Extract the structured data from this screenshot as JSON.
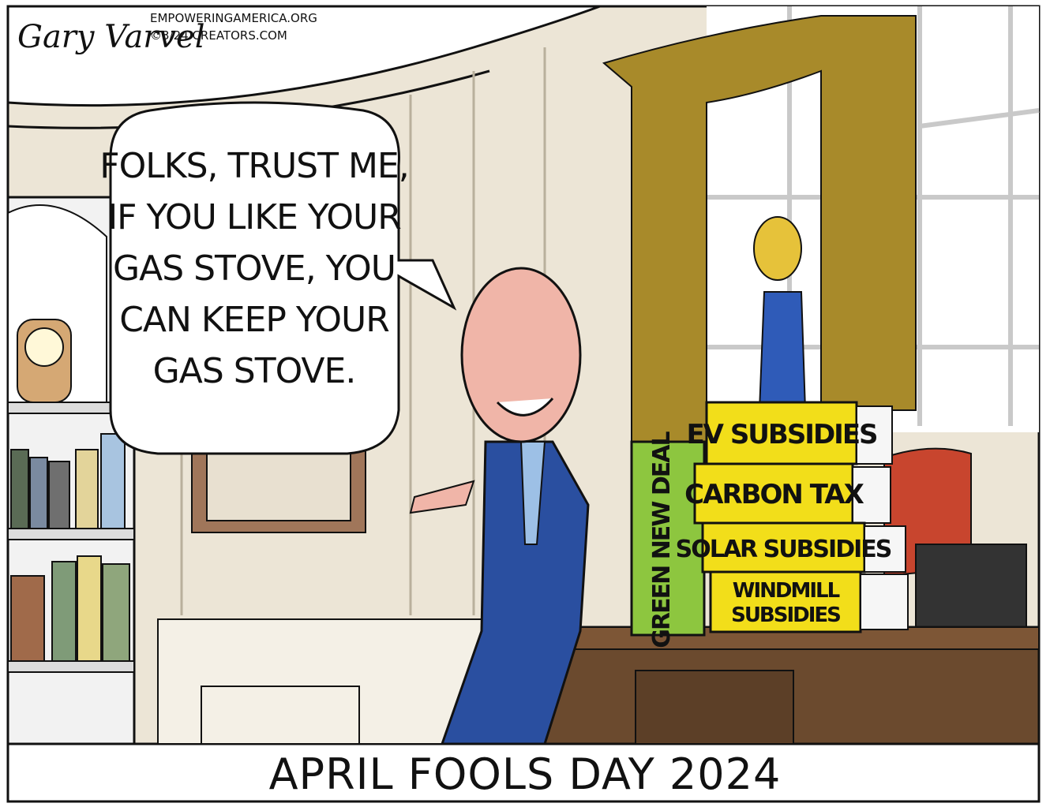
{
  "credits": {
    "signature": "Gary Varvel",
    "website": "EMPOWERINGAMERICA.ORG",
    "copyright": "©3/24 CREATORS.COM"
  },
  "speech_bubble": {
    "lines": [
      "FOLKS, TRUST ME,",
      "IF YOU LIKE YOUR",
      "GAS STOVE, YOU",
      "CAN KEEP YOUR",
      "GAS STOVE."
    ]
  },
  "books": {
    "spine": "GREEN NEW DEAL",
    "stack": [
      {
        "lines": [
          "EV SUBSIDIES"
        ]
      },
      {
        "lines": [
          "CARBON TAX"
        ]
      },
      {
        "lines": [
          "SOLAR SUBSIDIES"
        ]
      },
      {
        "lines": [
          "WINDMILL",
          "SUBSIDIES"
        ]
      }
    ]
  },
  "caption": "APRIL FOOLS DAY 2024"
}
